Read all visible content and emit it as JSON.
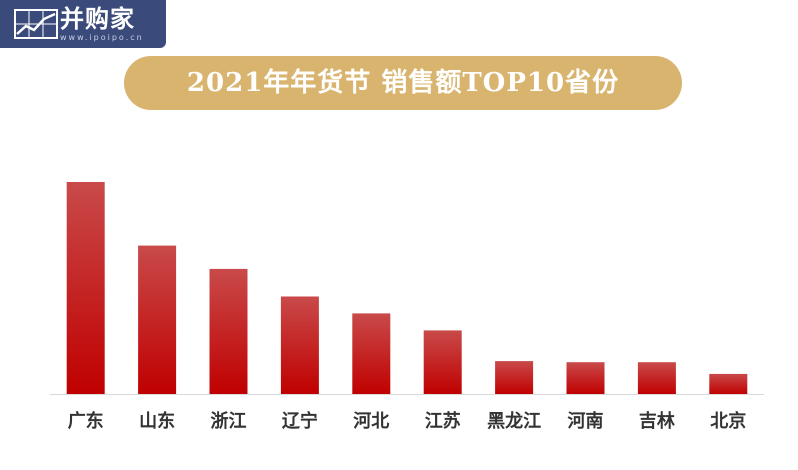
{
  "logo": {
    "name": "并购家",
    "url": "www.ipoipo.cn"
  },
  "colors": {
    "bar_top": "#c94a4a",
    "bar_bottom": "#c00000",
    "title_pill": "#d9b46e",
    "axis": "#d9d9d9",
    "logo_bg": "#3a4a7a"
  },
  "chart_data": {
    "type": "bar",
    "title": "2021年年货节  销售额TOP10省份",
    "categories": [
      "广东",
      "山东",
      "浙江",
      "辽宁",
      "河北",
      "江苏",
      "黑龙江",
      "河南",
      "吉林",
      "北京"
    ],
    "values": [
      100,
      70,
      59,
      46,
      38,
      30,
      15.5,
      15,
      15,
      9.5
    ],
    "xlabel": "",
    "ylabel": "",
    "ylim": [
      0,
      100
    ],
    "grid": false,
    "legend": "none"
  }
}
